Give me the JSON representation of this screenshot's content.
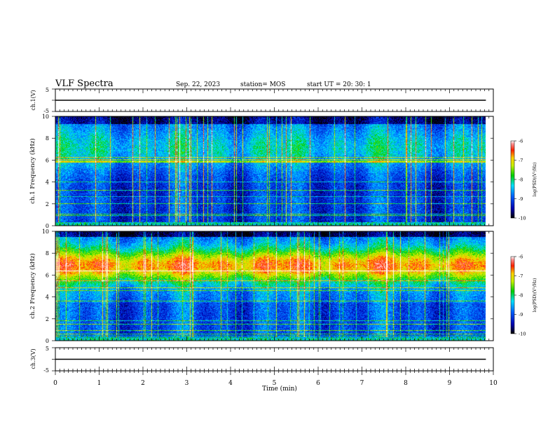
{
  "header": {
    "title": "VLF Spectra",
    "date": "Sep. 22, 2023",
    "station": "station= MOS",
    "start": "start  UT =   20: 30: 1"
  },
  "chart_data": [
    {
      "type": "line",
      "name": "ch1-voltage",
      "ylabel": "ch.1(V)",
      "ylim": [
        -5,
        5
      ],
      "yticks": [
        "5",
        "-5"
      ],
      "xlim": [
        0,
        10
      ],
      "x": [
        0,
        9.83
      ],
      "y": [
        0,
        0
      ]
    },
    {
      "type": "heatmap",
      "name": "ch1-spectrogram",
      "ylabel": "ch.1 Frequency (kHz)",
      "ylim": [
        0,
        10
      ],
      "yticks": [
        "0",
        "2",
        "4",
        "6",
        "8",
        "10"
      ],
      "xlim": [
        0,
        10
      ],
      "x_data_end": 9.83,
      "colorbar": {
        "label": "log(PSD)(V²/Hz)",
        "range": [
          -10,
          -6
        ],
        "ticks": [
          "-6",
          "-7",
          "-8",
          "-9",
          "-10"
        ]
      }
    },
    {
      "type": "heatmap",
      "name": "ch2-spectrogram",
      "ylabel": "ch.2 Frequency (kHz)",
      "ylim": [
        0,
        10
      ],
      "yticks": [
        "0",
        "2",
        "4",
        "6",
        "8",
        "10"
      ],
      "xlim": [
        0,
        10
      ],
      "x_data_end": 9.83,
      "colorbar": {
        "label": "log(PSD)(V²/Hz)",
        "range": [
          -10,
          -6
        ],
        "ticks": [
          "-6",
          "-7",
          "-8",
          "-9",
          "-10"
        ]
      }
    },
    {
      "type": "line",
      "name": "ch3-voltage",
      "ylabel": "ch.3(V)",
      "ylim": [
        -5,
        5
      ],
      "yticks": [
        "5",
        "-5"
      ],
      "xlim": [
        0,
        10
      ],
      "x": [
        0,
        9.83
      ],
      "y": [
        0,
        0
      ]
    }
  ],
  "xaxis": {
    "label": "Time (min)",
    "ticks": [
      "0",
      "1",
      "2",
      "3",
      "4",
      "5",
      "6",
      "7",
      "8",
      "9",
      "10"
    ]
  }
}
